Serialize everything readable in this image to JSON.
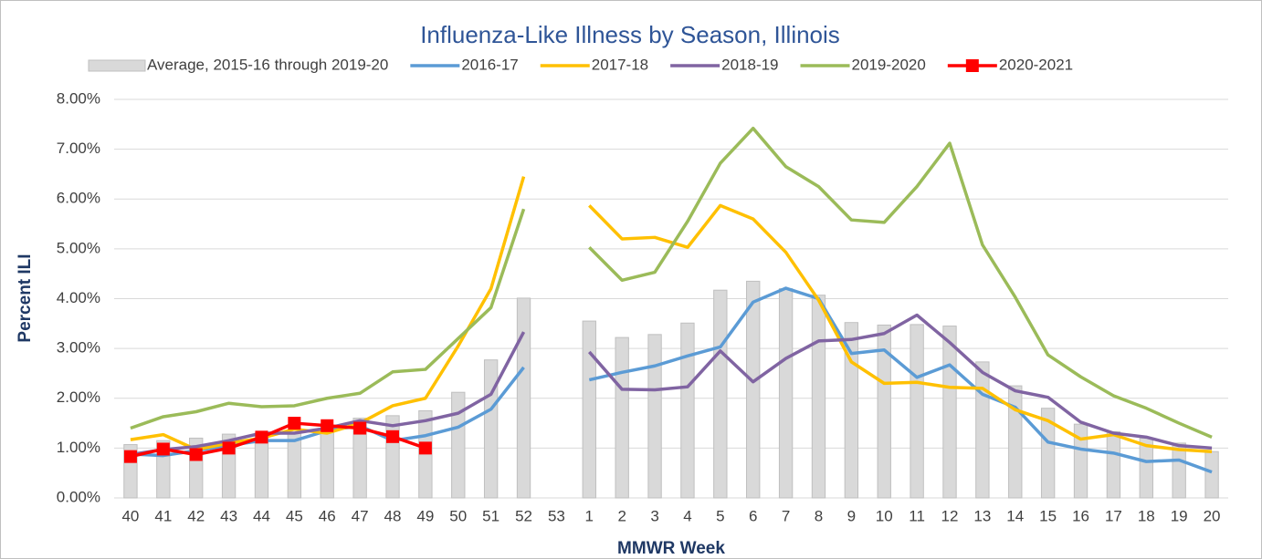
{
  "chart_data": {
    "type": "line",
    "title": "Influenza-Like Illness by Season, Illinois",
    "x_label": "MMWR Week",
    "y_label": "Percent ILI",
    "categories": [
      "40",
      "41",
      "42",
      "43",
      "44",
      "45",
      "46",
      "47",
      "48",
      "49",
      "50",
      "51",
      "52",
      "53",
      "1",
      "2",
      "3",
      "4",
      "5",
      "6",
      "7",
      "8",
      "9",
      "10",
      "11",
      "12",
      "13",
      "14",
      "15",
      "16",
      "17",
      "18",
      "19",
      "20"
    ],
    "ylim": [
      0,
      8
    ],
    "yticks": [
      {
        "value": 0,
        "label": "0.00%"
      },
      {
        "value": 1,
        "label": "1.00%"
      },
      {
        "value": 2,
        "label": "2.00%"
      },
      {
        "value": 3,
        "label": "3.00%"
      },
      {
        "value": 4,
        "label": "4.00%"
      },
      {
        "value": 5,
        "label": "5.00%"
      },
      {
        "value": 6,
        "label": "6.00%"
      },
      {
        "value": 7,
        "label": "7.00%"
      },
      {
        "value": 8,
        "label": "8.00%"
      }
    ],
    "grid": true,
    "legend": "top",
    "series": [
      {
        "name": "Average, 2015-16 through 2019-20",
        "type": "bar",
        "color": "#d9d9d9",
        "values": [
          1.07,
          1.15,
          1.2,
          1.28,
          1.3,
          1.3,
          1.4,
          1.6,
          1.65,
          1.75,
          2.12,
          2.77,
          4.01,
          null,
          3.55,
          3.22,
          3.28,
          3.51,
          4.17,
          4.35,
          4.2,
          4.07,
          3.52,
          3.47,
          3.48,
          3.45,
          2.73,
          2.25,
          1.8,
          1.48,
          1.33,
          1.2,
          1.1,
          0.93
        ]
      },
      {
        "name": "2016-17",
        "type": "line",
        "color": "#5b9bd5",
        "values": [
          0.88,
          0.85,
          0.95,
          1.05,
          1.15,
          1.15,
          1.35,
          1.45,
          1.15,
          1.25,
          1.42,
          1.78,
          2.62,
          null,
          2.37,
          2.52,
          2.65,
          2.85,
          3.03,
          3.93,
          4.21,
          4.0,
          2.9,
          2.97,
          2.42,
          2.67,
          2.08,
          1.82,
          1.12,
          0.98,
          0.9,
          0.73,
          0.76,
          0.52
        ]
      },
      {
        "name": "2017-18",
        "type": "line",
        "color": "#ffc000",
        "values": [
          1.17,
          1.27,
          0.97,
          1.1,
          1.2,
          1.38,
          1.3,
          1.5,
          1.85,
          2.0,
          3.05,
          4.2,
          6.45,
          null,
          5.87,
          5.2,
          5.23,
          5.03,
          5.87,
          5.6,
          4.93,
          3.97,
          2.73,
          2.3,
          2.32,
          2.22,
          2.2,
          1.77,
          1.55,
          1.18,
          1.27,
          1.05,
          0.97,
          0.93
        ]
      },
      {
        "name": "2018-19",
        "type": "line",
        "color": "#8064a2",
        "values": [
          0.87,
          0.97,
          1.03,
          1.15,
          1.3,
          1.3,
          1.4,
          1.55,
          1.45,
          1.55,
          1.7,
          2.08,
          3.33,
          null,
          2.93,
          2.18,
          2.17,
          2.23,
          2.95,
          2.33,
          2.8,
          3.15,
          3.18,
          3.3,
          3.67,
          3.12,
          2.52,
          2.15,
          2.02,
          1.52,
          1.3,
          1.22,
          1.05,
          1.0
        ]
      },
      {
        "name": "2019-2020",
        "type": "line",
        "color": "#9bbb59",
        "values": [
          1.4,
          1.63,
          1.73,
          1.9,
          1.83,
          1.85,
          2.0,
          2.1,
          2.53,
          2.58,
          3.2,
          3.82,
          5.8,
          null,
          5.03,
          4.37,
          4.53,
          5.55,
          6.72,
          7.42,
          6.65,
          6.25,
          5.58,
          5.53,
          6.25,
          7.12,
          5.08,
          4.03,
          2.87,
          2.43,
          2.05,
          1.8,
          1.5,
          1.22
        ]
      },
      {
        "name": "2020-2021",
        "type": "line",
        "color": "#ff0000",
        "marker": "square",
        "values": [
          0.83,
          0.98,
          0.87,
          1.0,
          1.22,
          1.5,
          1.45,
          1.4,
          1.23,
          1.0,
          null,
          null,
          null,
          null,
          null,
          null,
          null,
          null,
          null,
          null,
          null,
          null,
          null,
          null,
          null,
          null,
          null,
          null,
          null,
          null,
          null,
          null,
          null,
          null
        ]
      }
    ]
  }
}
